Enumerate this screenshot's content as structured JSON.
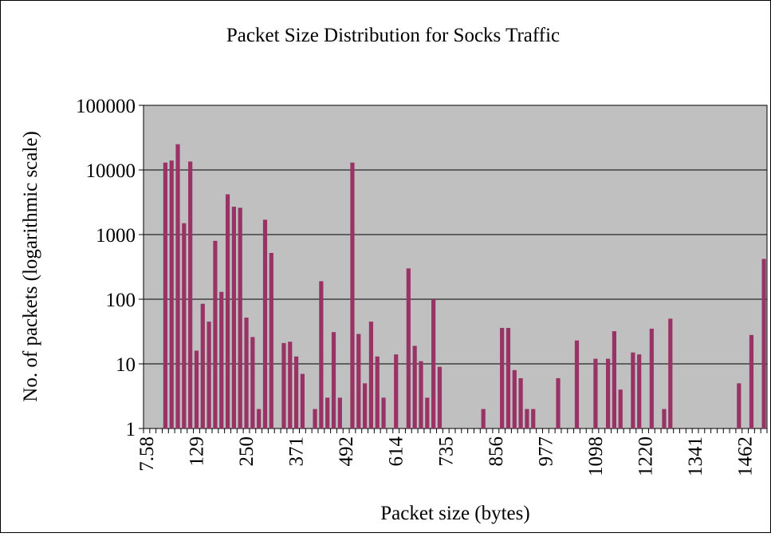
{
  "chart_data": {
    "type": "bar",
    "title": "Packet Size Distribution for Socks Traffic",
    "x_label": "Packet size (bytes)",
    "y_label": "No. of packets (logarithmic scale)",
    "color": "#993366",
    "log_scale": true,
    "grid": true,
    "ylim": [
      1,
      100000
    ],
    "yticks": [
      1,
      10,
      100,
      1000,
      10000,
      100000
    ],
    "categories": [
      "7.58",
      null,
      null,
      null,
      null,
      null,
      null,
      null,
      "129",
      null,
      null,
      null,
      null,
      null,
      null,
      null,
      "250",
      null,
      null,
      null,
      null,
      null,
      null,
      null,
      "371",
      null,
      null,
      null,
      null,
      null,
      null,
      null,
      "492",
      null,
      null,
      null,
      null,
      null,
      null,
      null,
      "614",
      null,
      null,
      null,
      null,
      null,
      null,
      null,
      "735",
      null,
      null,
      null,
      null,
      null,
      null,
      null,
      "856",
      null,
      null,
      null,
      null,
      null,
      null,
      null,
      "977",
      null,
      null,
      null,
      null,
      null,
      null,
      null,
      "1098",
      null,
      null,
      null,
      null,
      null,
      null,
      null,
      "1220",
      null,
      null,
      null,
      null,
      null,
      null,
      null,
      "1341",
      null,
      null,
      null,
      null,
      null,
      null,
      null,
      "1462",
      null,
      null,
      null
    ],
    "values": [
      null,
      null,
      null,
      13000,
      14000,
      25000,
      1500,
      13500,
      16,
      85,
      45,
      800,
      130,
      4200,
      2700,
      2600,
      52,
      26,
      2,
      1700,
      520,
      null,
      21,
      22,
      13,
      7,
      null,
      2,
      190,
      3,
      31,
      3,
      null,
      13000,
      29,
      5,
      45,
      13,
      3,
      null,
      14,
      null,
      300,
      19,
      11,
      3,
      100,
      9,
      null,
      null,
      null,
      null,
      null,
      null,
      2,
      null,
      null,
      36,
      36,
      8,
      6,
      2,
      2,
      null,
      null,
      null,
      6,
      null,
      null,
      23,
      null,
      null,
      12,
      null,
      12,
      32,
      4,
      null,
      15,
      14,
      null,
      35,
      null,
      2,
      50,
      null,
      null,
      null,
      null,
      null,
      null,
      null,
      null,
      null,
      null,
      5,
      null,
      28,
      null,
      420
    ]
  }
}
